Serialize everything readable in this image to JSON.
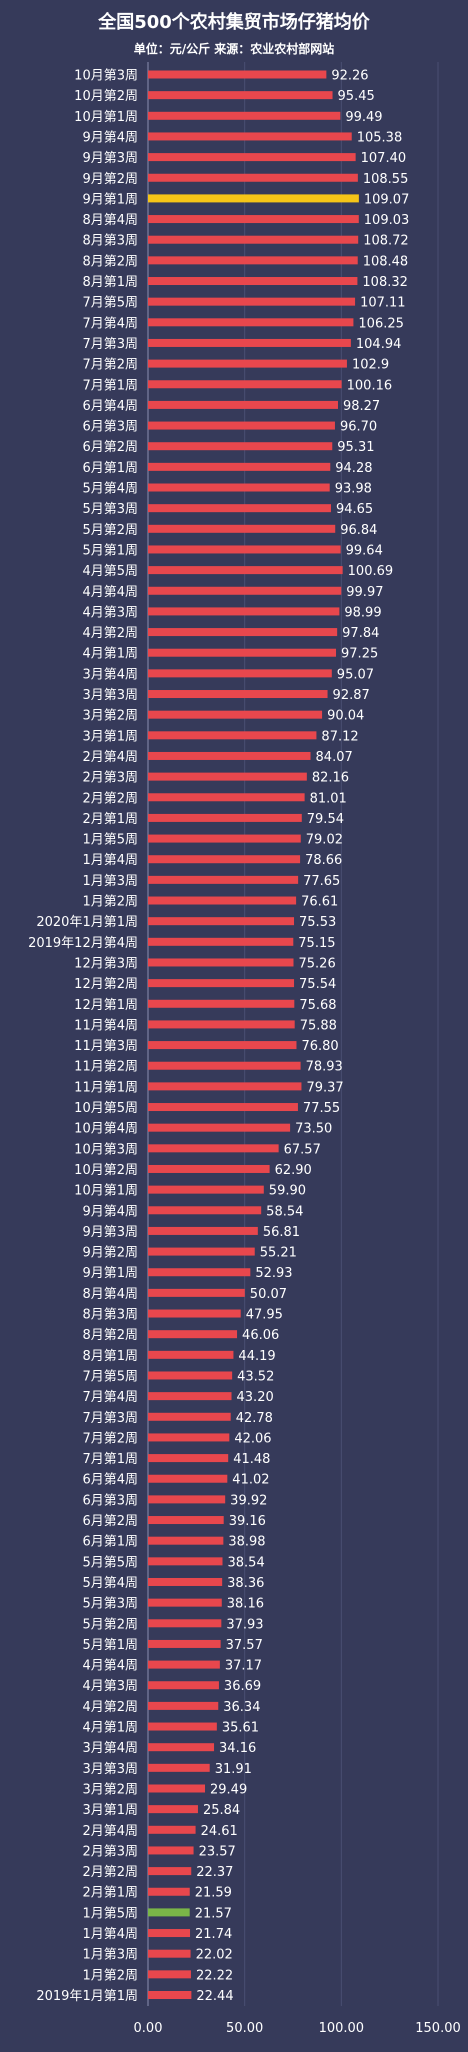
{
  "chart_data": {
    "type": "bar",
    "orientation": "horizontal",
    "title": "全国500个农村集贸市场仔猪均价",
    "subtitle": "单位：元/公斤 来源：农业农村部网站",
    "categories": [
      "10月第3周",
      "10月第2周",
      "10月第1周",
      "9月第4周",
      "9月第3周",
      "9月第2周",
      "9月第1周",
      "8月第4周",
      "8月第3周",
      "8月第2周",
      "8月第1周",
      "7月第5周",
      "7月第4周",
      "7月第3周",
      "7月第2周",
      "7月第1周",
      "6月第4周",
      "6月第3周",
      "6月第2周",
      "6月第1周",
      "5月第4周",
      "5月第3周",
      "5月第2周",
      "5月第1周",
      "4月第5周",
      "4月第4周",
      "4月第3周",
      "4月第2周",
      "4月第1周",
      "3月第4周",
      "3月第3周",
      "3月第2周",
      "3月第1周",
      "2月第4周",
      "2月第3周",
      "2月第2周",
      "2月第1周",
      "1月第5周",
      "1月第4周",
      "1月第3周",
      "1月第2周",
      "2020年1月第1周",
      "2019年12月第4周",
      "12月第3周",
      "12月第2周",
      "12月第1周",
      "11月第4周",
      "11月第3周",
      "11月第2周",
      "11月第1周",
      "10月第5周",
      "10月第4周",
      "10月第3周",
      "10月第2周",
      "10月第1周",
      "9月第4周",
      "9月第3周",
      "9月第2周",
      "9月第1周",
      "8月第4周",
      "8月第3周",
      "8月第2周",
      "8月第1周",
      "7月第5周",
      "7月第4周",
      "7月第3周",
      "7月第2周",
      "7月第1周",
      "6月第4周",
      "6月第3周",
      "6月第2周",
      "6月第1周",
      "5月第5周",
      "5月第4周",
      "5月第3周",
      "5月第2周",
      "5月第1周",
      "4月第4周",
      "4月第3周",
      "4月第2周",
      "4月第1周",
      "3月第4周",
      "3月第3周",
      "3月第2周",
      "3月第1周",
      "2月第4周",
      "2月第3周",
      "2月第2周",
      "2月第1周",
      "1月第5周",
      "1月第4周",
      "1月第3周",
      "1月第2周",
      "2019年1月第1周"
    ],
    "value_labels": [
      "92.26",
      "95.45",
      "99.49",
      "105.38",
      "107.40",
      "108.55",
      "109.07",
      "109.03",
      "108.72",
      "108.48",
      "108.32",
      "107.11",
      "106.25",
      "104.94",
      "102.9",
      "100.16",
      "98.27",
      "96.70",
      "95.31",
      "94.28",
      "93.98",
      "94.65",
      "96.84",
      "99.64",
      "100.69",
      "99.97",
      "98.99",
      "97.84",
      "97.25",
      "95.07",
      "92.87",
      "90.04",
      "87.12",
      "84.07",
      "82.16",
      "81.01",
      "79.54",
      "79.02",
      "78.66",
      "77.65",
      "76.61",
      "75.53",
      "75.15",
      "75.26",
      "75.54",
      "75.68",
      "75.88",
      "76.80",
      "78.93",
      "79.37",
      "77.55",
      "73.50",
      "67.57",
      "62.90",
      "59.90",
      "58.54",
      "56.81",
      "55.21",
      "52.93",
      "50.07",
      "47.95",
      "46.06",
      "44.19",
      "43.52",
      "43.20",
      "42.78",
      "42.06",
      "41.48",
      "41.02",
      "39.92",
      "39.16",
      "38.98",
      "38.54",
      "38.36",
      "38.16",
      "37.93",
      "37.57",
      "37.17",
      "36.69",
      "36.34",
      "35.61",
      "34.16",
      "31.91",
      "29.49",
      "25.84",
      "24.61",
      "23.57",
      "22.37",
      "21.59",
      "21.57",
      "21.74",
      "22.02",
      "22.22",
      "22.44"
    ],
    "values": [
      92.26,
      95.45,
      99.49,
      105.38,
      107.4,
      108.55,
      109.07,
      109.03,
      108.72,
      108.48,
      108.32,
      107.11,
      106.25,
      104.94,
      102.9,
      100.16,
      98.27,
      96.7,
      95.31,
      94.28,
      93.98,
      94.65,
      96.84,
      99.64,
      100.69,
      99.97,
      98.99,
      97.84,
      97.25,
      95.07,
      92.87,
      90.04,
      87.12,
      84.07,
      82.16,
      81.01,
      79.54,
      79.02,
      78.66,
      77.65,
      76.61,
      75.53,
      75.15,
      75.26,
      75.54,
      75.68,
      75.88,
      76.8,
      78.93,
      79.37,
      77.55,
      73.5,
      67.57,
      62.9,
      59.9,
      58.54,
      56.81,
      55.21,
      52.93,
      50.07,
      47.95,
      46.06,
      44.19,
      43.52,
      43.2,
      42.78,
      42.06,
      41.48,
      41.02,
      39.92,
      39.16,
      38.98,
      38.54,
      38.36,
      38.16,
      37.93,
      37.57,
      37.17,
      36.69,
      36.34,
      35.61,
      34.16,
      31.91,
      29.49,
      25.84,
      24.61,
      23.57,
      22.37,
      21.59,
      21.57,
      21.74,
      22.02,
      22.22,
      22.44
    ],
    "highlights": {
      "6": "#f5c518",
      "89": "#7ab648"
    },
    "colors": {
      "bar": "#e8474d",
      "background": "#363a5a",
      "gridline": "#4a4f72",
      "text": "#ffffff"
    },
    "xlim": [
      0,
      150
    ],
    "xticks": [
      "0.00",
      "50.00",
      "100.00",
      "150.00"
    ],
    "grid": true
  }
}
